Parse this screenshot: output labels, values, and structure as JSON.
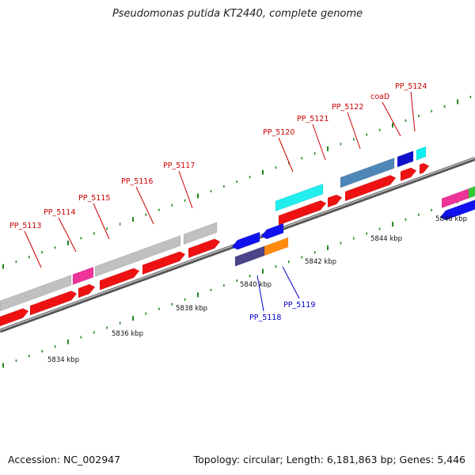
{
  "title": "Pseudomonas putida KT2440, complete genome",
  "footer": {
    "accession": "Accession: NC_002947",
    "summary": "Topology: circular; Length: 6,181,863 bp; Genes: 5,446"
  },
  "colors": {
    "backbone": "#888888",
    "tick_major": "#228822",
    "tick_minor": "#228822",
    "label_upper": "#cc0000",
    "label_lower": "#0000cc"
  },
  "scale_labels": [
    "5834 kbp",
    "5836 kbp",
    "5838 kbp",
    "5840 kbp",
    "5842 kbp",
    "5844 kbp",
    "5846 kbp"
  ],
  "genes_upper": [
    "PP_5113",
    "PP_5114",
    "PP_5115",
    "PP_5116",
    "PP_5117",
    "PP_5120",
    "PP_5121",
    "PP_5122",
    "coaD",
    "PP_5124"
  ],
  "genes_lower": [
    "PP_5118",
    "PP_5119"
  ]
}
